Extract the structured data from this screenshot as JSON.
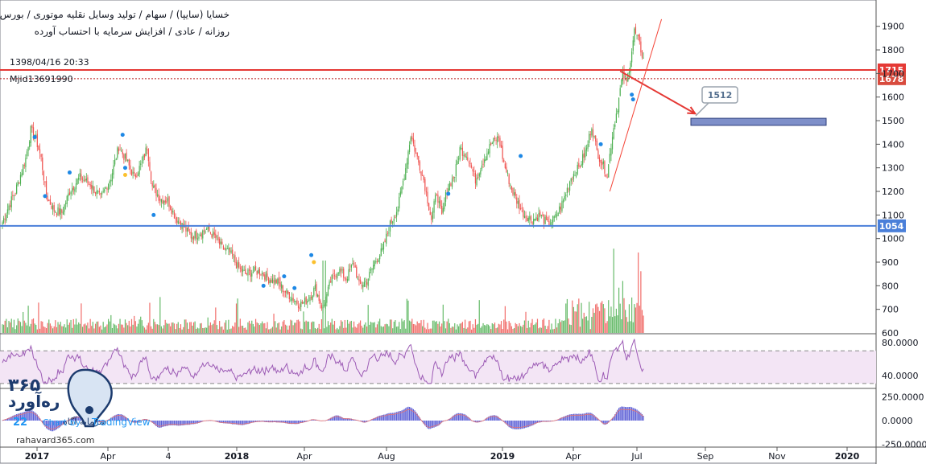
{
  "header": {
    "line1": "خسایا (سایپا) / سهام / تولید وسایل نقلیه موتوری / بورس تهران",
    "line2": "روزانه / عادی / افزایش سرمایه با احتساب آورده",
    "timestamp": "1398/04/16 20:33",
    "user": "Mjid13691990"
  },
  "branding": {
    "logo_text": "ره‌آورد",
    "logo_number": "۳۶۵",
    "tagline": "سرمایه آگاه",
    "watermark": "TradingView",
    "watermark_prefix": "Chart by",
    "site": "rahavard365.com"
  },
  "colors": {
    "up": "#4caf50",
    "down": "#ef5350",
    "resistance": "#e53935",
    "support": "#4a7fd9",
    "rsi": "#9c5bb5",
    "rsi_band": "#f3e5f5",
    "target_box": "#7e8fc9",
    "macd_hist": "#5c5fd6",
    "signal_line": "#e57373"
  },
  "chart_data": [
    {
      "type": "candlestick",
      "panel": "price",
      "y_axis": {
        "ticks": [
          600,
          700,
          800,
          900,
          1000,
          1100,
          1200,
          1300,
          1400,
          1500,
          1600,
          1700,
          1800,
          1900
        ],
        "range": [
          600,
          1950
        ]
      },
      "x_axis": {
        "ticks": [
          "2017",
          "Apr",
          "4",
          "2018",
          "Apr",
          "Aug",
          "2019",
          "Apr",
          "Jul",
          "Sep",
          "Nov",
          "2020"
        ]
      },
      "anchors": [
        [
          0,
          1070
        ],
        [
          5,
          1140
        ],
        [
          10,
          1200
        ],
        [
          18,
          1340
        ],
        [
          22,
          1460
        ],
        [
          26,
          1420
        ],
        [
          30,
          1340
        ],
        [
          34,
          1180
        ],
        [
          40,
          1120
        ],
        [
          46,
          1110
        ],
        [
          52,
          1200
        ],
        [
          60,
          1260
        ],
        [
          68,
          1230
        ],
        [
          76,
          1170
        ],
        [
          84,
          1260
        ],
        [
          90,
          1390
        ],
        [
          96,
          1330
        ],
        [
          102,
          1260
        ],
        [
          108,
          1320
        ],
        [
          112,
          1390
        ],
        [
          116,
          1220
        ],
        [
          122,
          1170
        ],
        [
          128,
          1160
        ],
        [
          134,
          1090
        ],
        [
          140,
          1050
        ],
        [
          146,
          1010
        ],
        [
          152,
          1020
        ],
        [
          158,
          1040
        ],
        [
          164,
          1010
        ],
        [
          170,
          960
        ],
        [
          176,
          940
        ],
        [
          182,
          880
        ],
        [
          188,
          850
        ],
        [
          194,
          860
        ],
        [
          200,
          860
        ],
        [
          206,
          830
        ],
        [
          212,
          820
        ],
        [
          218,
          780
        ],
        [
          224,
          750
        ],
        [
          230,
          720
        ],
        [
          236,
          740
        ],
        [
          242,
          790
        ],
        [
          248,
          700
        ],
        [
          254,
          820
        ],
        [
          260,
          870
        ],
        [
          266,
          830
        ],
        [
          272,
          900
        ],
        [
          276,
          800
        ],
        [
          282,
          820
        ],
        [
          288,
          900
        ],
        [
          294,
          950
        ],
        [
          300,
          1060
        ],
        [
          306,
          1130
        ],
        [
          312,
          1300
        ],
        [
          316,
          1440
        ],
        [
          320,
          1360
        ],
        [
          326,
          1250
        ],
        [
          332,
          1080
        ],
        [
          336,
          1200
        ],
        [
          340,
          1090
        ],
        [
          344,
          1210
        ],
        [
          350,
          1270
        ],
        [
          354,
          1380
        ],
        [
          360,
          1350
        ],
        [
          366,
          1250
        ],
        [
          372,
          1330
        ],
        [
          378,
          1400
        ],
        [
          384,
          1430
        ],
        [
          388,
          1320
        ],
        [
          394,
          1210
        ],
        [
          398,
          1160
        ],
        [
          404,
          1100
        ],
        [
          410,
          1080
        ],
        [
          416,
          1100
        ],
        [
          422,
          1060
        ],
        [
          428,
          1090
        ],
        [
          434,
          1160
        ],
        [
          440,
          1260
        ],
        [
          446,
          1300
        ],
        [
          452,
          1380
        ],
        [
          456,
          1480
        ],
        [
          460,
          1370
        ],
        [
          464,
          1320
        ],
        [
          468,
          1270
        ],
        [
          472,
          1440
        ],
        [
          476,
          1560
        ],
        [
          480,
          1700
        ],
        [
          483,
          1660
        ],
        [
          486,
          1760
        ],
        [
          489,
          1880
        ],
        [
          492,
          1840
        ],
        [
          496,
          1760
        ]
      ],
      "events_blue": [
        [
          25,
          1430
        ],
        [
          33,
          1180
        ],
        [
          52,
          1280
        ],
        [
          93,
          1440
        ],
        [
          95,
          1300
        ],
        [
          117,
          1100
        ],
        [
          202,
          800
        ],
        [
          218,
          840
        ],
        [
          226,
          790
        ],
        [
          239,
          930
        ],
        [
          345,
          1190
        ],
        [
          401,
          1350
        ],
        [
          463,
          1400
        ],
        [
          487,
          1610
        ],
        [
          488,
          1590
        ]
      ],
      "events_yellow": [
        [
          95,
          1270
        ],
        [
          241,
          900
        ]
      ],
      "levels": [
        {
          "value": 1715,
          "label": "1715",
          "role": "resistance"
        },
        {
          "value": 1678,
          "label": "1678",
          "role": "secondary"
        },
        {
          "value": 1054,
          "label": "1054",
          "role": "support"
        }
      ],
      "target": {
        "label": "1512",
        "zone": [
          1480,
          1510
        ]
      },
      "trend_line": {
        "from": [
          470,
          1200
        ],
        "to": [
          510,
          1930
        ]
      },
      "projection_arrow": {
        "from": [
          478,
          1710
        ],
        "to": [
          536,
          1530
        ]
      }
    },
    {
      "type": "bar",
      "panel": "volume",
      "note": "volume bars (relative), overlaid at bottom of price panel"
    },
    {
      "type": "line",
      "panel": "rsi",
      "y_axis": {
        "ticks": [
          "80.0000",
          "40.0000"
        ],
        "range": [
          25,
          90
        ],
        "bands": [
          70,
          30
        ]
      }
    },
    {
      "type": "bar",
      "panel": "macd",
      "y_axis": {
        "ticks": [
          "250.0000",
          "0.0000",
          "-250.0000"
        ],
        "range": [
          -300,
          300
        ]
      }
    }
  ]
}
